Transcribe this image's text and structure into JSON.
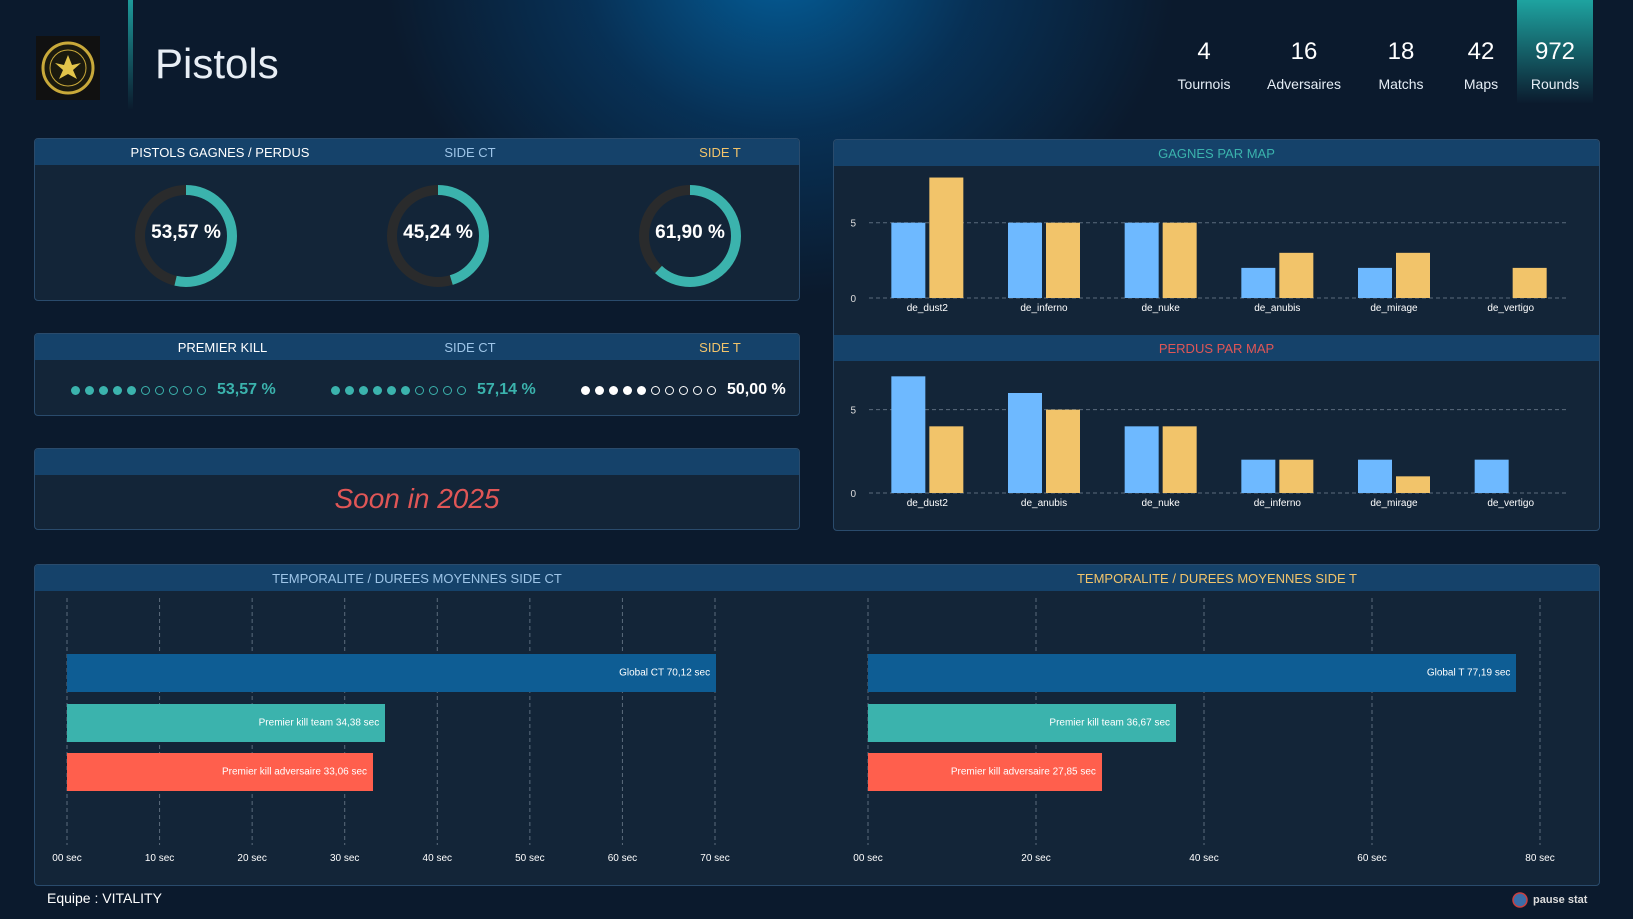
{
  "header": {
    "title": "Pistols",
    "stats": [
      {
        "value": "4",
        "label": "Tournois"
      },
      {
        "value": "16",
        "label": "Adversaires"
      },
      {
        "value": "18",
        "label": "Matchs"
      },
      {
        "value": "42",
        "label": "Maps"
      },
      {
        "value": "972",
        "label": "Rounds"
      }
    ]
  },
  "pistols": {
    "labels": [
      "PISTOLS GAGNES / PERDUS",
      "SIDE CT",
      "SIDE T"
    ],
    "donuts": [
      {
        "text": "53,57 %",
        "value": 0.5357
      },
      {
        "text": "45,24 %",
        "value": 0.4524
      },
      {
        "text": "61,90 %",
        "value": 0.619
      }
    ]
  },
  "premier_kill": {
    "labels": [
      "PREMIER KILL",
      "SIDE CT",
      "SIDE T"
    ],
    "groups": [
      {
        "filled": 5,
        "total": 10,
        "text": "53,57 %"
      },
      {
        "filled": 6,
        "total": 10,
        "text": "57,14 %"
      },
      {
        "filled": 5,
        "total": 10,
        "text": "50,00 %"
      }
    ]
  },
  "soon": {
    "text": "Soon in 2025"
  },
  "colors": {
    "teal": "#3bb3ad",
    "gold": "#f2c46a",
    "blue": "#6eb9ff",
    "red": "#e05656",
    "ct_bar": "#0e5d94",
    "coral": "#ff5f4d"
  },
  "chart_data": [
    {
      "type": "bar",
      "title": "GAGNES PAR MAP",
      "categories": [
        "de_dust2",
        "de_inferno",
        "de_nuke",
        "de_anubis",
        "de_mirage",
        "de_vertigo"
      ],
      "series": [
        {
          "values": [
            5,
            5,
            5,
            2,
            2,
            0
          ]
        },
        {
          "values": [
            8,
            5,
            5,
            3,
            3,
            2
          ]
        }
      ],
      "yticks": [
        0,
        5
      ],
      "ylim": [
        0,
        8.5
      ]
    },
    {
      "type": "bar",
      "title": "PERDUS PAR MAP",
      "categories": [
        "de_dust2",
        "de_anubis",
        "de_nuke",
        "de_inferno",
        "de_mirage",
        "de_vertigo"
      ],
      "series": [
        {
          "values": [
            7,
            6,
            4,
            2,
            2,
            2
          ]
        },
        {
          "values": [
            4,
            5,
            4,
            2,
            1,
            0
          ]
        }
      ],
      "yticks": [
        0,
        5
      ],
      "ylim": [
        0,
        7.5
      ]
    },
    {
      "type": "bar",
      "orientation": "horizontal",
      "title": "TEMPORALITE / DUREES MOYENNES SIDE CT",
      "ticks": [
        "00 sec",
        "10 sec",
        "20 sec",
        "30 sec",
        "40 sec",
        "50 sec",
        "60 sec",
        "70 sec"
      ],
      "xlim": [
        0,
        70
      ],
      "bars": [
        {
          "label": "Global CT 70,12 sec",
          "value": 70.12
        },
        {
          "label": "Premier kill team 34,38 sec",
          "value": 34.38
        },
        {
          "label": "Premier kill adversaire 33,06 sec",
          "value": 33.06
        }
      ]
    },
    {
      "type": "bar",
      "orientation": "horizontal",
      "title": "TEMPORALITE / DUREES MOYENNES SIDE T",
      "ticks": [
        "00 sec",
        "20 sec",
        "40 sec",
        "60 sec",
        "80 sec"
      ],
      "xlim": [
        0,
        80
      ],
      "bars": [
        {
          "label": "Global T  77,19 sec",
          "value": 77.19
        },
        {
          "label": "Premier kill team  36,67 sec",
          "value": 36.67
        },
        {
          "label": "Premier kill adversaire  27,85 sec",
          "value": 27.85
        }
      ]
    }
  ],
  "footer": {
    "team": "Equipe : VITALITY",
    "brand": "pause stat"
  }
}
